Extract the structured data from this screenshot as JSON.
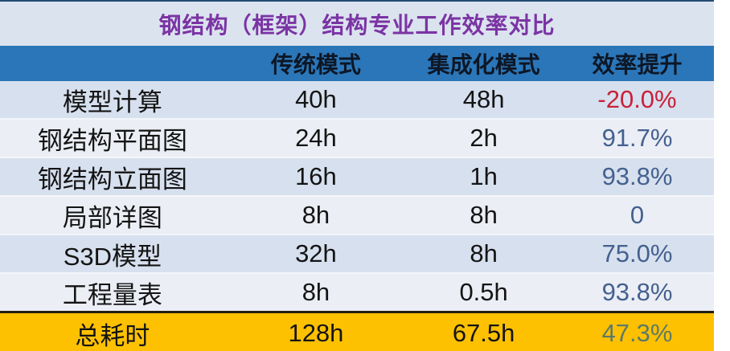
{
  "title": "钢结构（框架）结构专业工作效率对比",
  "header": {
    "col_task": "",
    "col_traditional": "传统模式",
    "col_integrated": "集成化模式",
    "col_efficiency": "效率提升"
  },
  "rows": [
    {
      "label": "模型计算",
      "traditional": "40h",
      "integrated": "48h",
      "efficiency": "-20.0%"
    },
    {
      "label": "钢结构平面图",
      "traditional": "24h",
      "integrated": "2h",
      "efficiency": "91.7%"
    },
    {
      "label": "钢结构立面图",
      "traditional": "16h",
      "integrated": "1h",
      "efficiency": "93.8%"
    },
    {
      "label": "局部详图",
      "traditional": "8h",
      "integrated": "8h",
      "efficiency": "0"
    },
    {
      "label": "S3D模型",
      "traditional": "32h",
      "integrated": "8h",
      "efficiency": "75.0%"
    },
    {
      "label": "工程量表",
      "traditional": "8h",
      "integrated": "0.5h",
      "efficiency": "93.8%"
    }
  ],
  "total_row": {
    "label": "总耗时",
    "traditional": "128h",
    "integrated": "67.5h",
    "efficiency": "47.3%"
  },
  "colors": {
    "title_text": "#7b34a4",
    "title_bg": "#dbe3ef",
    "header_bg": "#2b76b8",
    "header_text": "#0d1726",
    "row_odd_bg": "#d7e0ee",
    "row_even_bg": "#ebeef5",
    "efficiency_positive": "#44618f",
    "efficiency_negative": "#c9203a",
    "total_bg": "#fec102",
    "total_efficiency": "#5d7a66"
  },
  "chart_data": {
    "type": "table",
    "title": "钢结构（框架）结构专业工作效率对比",
    "columns": [
      "",
      "传统模式",
      "集成化模式",
      "效率提升"
    ],
    "rows": [
      [
        "模型计算",
        "40h",
        "48h",
        "-20.0%"
      ],
      [
        "钢结构平面图",
        "24h",
        "2h",
        "91.7%"
      ],
      [
        "钢结构立面图",
        "16h",
        "1h",
        "93.8%"
      ],
      [
        "局部详图",
        "8h",
        "8h",
        "0"
      ],
      [
        "S3D模型",
        "32h",
        "8h",
        "75.0%"
      ],
      [
        "工程量表",
        "8h",
        "0.5h",
        "93.8%"
      ],
      [
        "总耗时",
        "128h",
        "67.5h",
        "47.3%"
      ]
    ]
  }
}
